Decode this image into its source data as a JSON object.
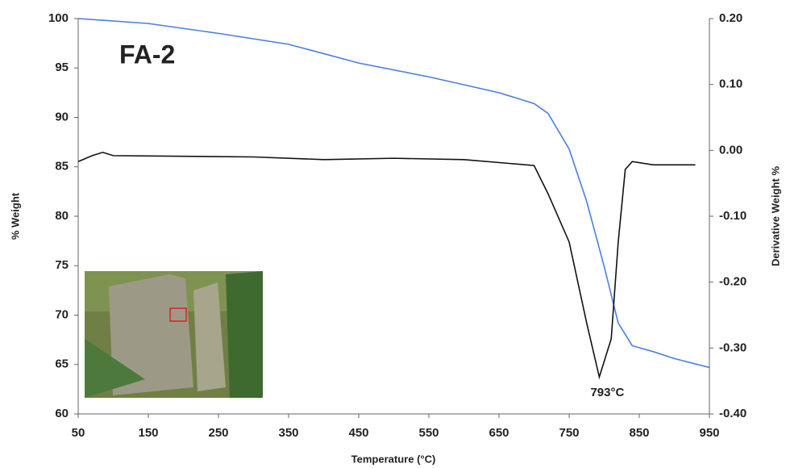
{
  "chart_data": {
    "type": "line",
    "title": "FA-2",
    "x_label": "Temperature (°C)",
    "y_label": "% Weight",
    "y2_label": "Derivative Weight %",
    "xlim": [
      50,
      950
    ],
    "xticks": [
      50,
      150,
      250,
      350,
      450,
      550,
      650,
      750,
      850,
      950
    ],
    "ylim": [
      60,
      100
    ],
    "yticks": [
      60,
      65,
      70,
      75,
      80,
      85,
      90,
      95,
      100
    ],
    "y2lim": [
      -0.4,
      0.2
    ],
    "y2ticks": [
      {
        "value": -0.4,
        "label": "-0.40"
      },
      {
        "value": -0.3,
        "label": "-0.30"
      },
      {
        "value": -0.2,
        "label": "-0.20"
      },
      {
        "value": -0.1,
        "label": "-0.10"
      },
      {
        "value": 0,
        "label": "0.00"
      },
      {
        "value": 0.1,
        "label": "0.10"
      },
      {
        "value": 0.2,
        "label": "0.20"
      }
    ],
    "series": [
      {
        "name": "% Weight",
        "color": "#4a7fdc",
        "x": [
          50,
          150,
          250,
          350,
          450,
          550,
          650,
          700,
          720,
          750,
          775,
          800,
          820,
          840,
          870,
          900,
          950
        ],
        "values": [
          100,
          99.5,
          98.5,
          97.4,
          95.5,
          94.1,
          92.5,
          91.4,
          90.4,
          86.8,
          81.5,
          74.9,
          69.2,
          66.9,
          66.3,
          65.6,
          64.7
        ]
      },
      {
        "name": "Derivative Weight %",
        "color": "#111111",
        "axis": "y2",
        "x": [
          50,
          70,
          85,
          100,
          200,
          300,
          400,
          500,
          600,
          700,
          720,
          750,
          775,
          793,
          810,
          820,
          830,
          840,
          870,
          930
        ],
        "values": [
          -0.017,
          -0.008,
          -0.003,
          -0.008,
          -0.009,
          -0.01,
          -0.014,
          -0.012,
          -0.014,
          -0.023,
          -0.066,
          -0.139,
          -0.262,
          -0.344,
          -0.286,
          -0.139,
          -0.029,
          -0.017,
          -0.022,
          -0.022
        ]
      }
    ],
    "annotations": [
      {
        "text": "793°C",
        "x": 793,
        "y": -0.344
      }
    ]
  }
}
